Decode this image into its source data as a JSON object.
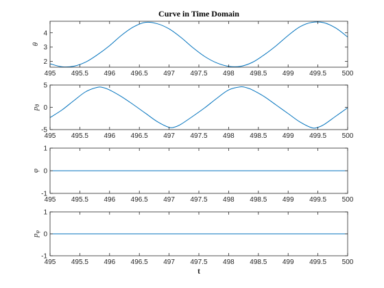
{
  "colors": {
    "series": "#0072bd",
    "axis": "#262626",
    "background": "#ffffff"
  },
  "chart_data": [
    {
      "type": "line",
      "title": "Curve in Time Domain",
      "ylabel": "θ",
      "xlabel": "",
      "xlim": [
        495,
        500
      ],
      "ylim": [
        1.6,
        4.8
      ],
      "xticks": [
        "495",
        "495.5",
        "496",
        "496.5",
        "497",
        "497.5",
        "498",
        "498.5",
        "499",
        "499.5",
        "500"
      ],
      "yticks": [
        2,
        3,
        4
      ],
      "ytick_labels": [
        "2",
        "3",
        "4"
      ],
      "grid": false,
      "series": [
        {
          "x": [
            495,
            495.2,
            495.4,
            495.6,
            495.8,
            496,
            496.2,
            496.4,
            496.6,
            496.8,
            497,
            497.2,
            497.4,
            497.6,
            497.8,
            498,
            498.2,
            498.4,
            498.6,
            498.8,
            499,
            499.2,
            499.4,
            499.6,
            499.8,
            500
          ],
          "values": [
            1.84,
            1.63,
            1.67,
            1.96,
            2.48,
            3.1,
            3.82,
            4.4,
            4.72,
            4.63,
            4.27,
            3.67,
            2.96,
            2.34,
            1.9,
            1.66,
            1.66,
            1.94,
            2.47,
            3.1,
            3.81,
            4.42,
            4.72,
            4.7,
            4.33,
            3.7
          ]
        }
      ]
    },
    {
      "type": "line",
      "title": "",
      "ylabel": "pθ",
      "xlabel": "",
      "xlim": [
        495,
        500
      ],
      "ylim": [
        -5,
        5
      ],
      "xticks": [
        "495",
        "495.5",
        "496",
        "496.5",
        "497",
        "497.5",
        "498",
        "498.5",
        "499",
        "499.5",
        "500"
      ],
      "yticks": [
        -5,
        0,
        5
      ],
      "ytick_labels": [
        "-5",
        "0",
        "5"
      ],
      "grid": false,
      "series": [
        {
          "x": [
            495,
            495.2,
            495.4,
            495.6,
            495.8,
            495.9,
            496,
            496.2,
            496.4,
            496.6,
            496.8,
            497,
            497.1,
            497.2,
            497.4,
            497.6,
            497.8,
            498,
            498.2,
            498.3,
            498.4,
            498.6,
            498.8,
            499,
            499.2,
            499.4,
            499.5,
            499.6,
            499.8,
            500
          ],
          "values": [
            -2.3,
            -0.6,
            1.5,
            3.5,
            4.5,
            4.4,
            3.9,
            2.4,
            0.6,
            -1.3,
            -3.2,
            -4.5,
            -4.4,
            -3.8,
            -2.0,
            -0.1,
            2.0,
            3.9,
            4.6,
            4.4,
            3.9,
            2.4,
            0.5,
            -1.4,
            -3.3,
            -4.6,
            -4.5,
            -3.9,
            -2.0,
            -0.1
          ]
        }
      ]
    },
    {
      "type": "line",
      "title": "",
      "ylabel": "φ",
      "xlabel": "",
      "xlim": [
        495,
        500
      ],
      "ylim": [
        -1,
        1
      ],
      "xticks": [
        "495",
        "495.5",
        "496",
        "496.5",
        "497",
        "497.5",
        "498",
        "498.5",
        "499",
        "499.5",
        "500"
      ],
      "yticks": [
        -1,
        0,
        1
      ],
      "ytick_labels": [
        "-1",
        "0",
        "1"
      ],
      "grid": false,
      "series": [
        {
          "x": [
            495,
            500
          ],
          "values": [
            0,
            0
          ]
        }
      ]
    },
    {
      "type": "line",
      "title": "",
      "ylabel": "pφ",
      "xlabel": "t",
      "xlim": [
        495,
        500
      ],
      "ylim": [
        -1,
        1
      ],
      "xticks": [
        "495",
        "495.5",
        "496",
        "496.5",
        "497",
        "497.5",
        "498",
        "498.5",
        "499",
        "499.5",
        "500"
      ],
      "yticks": [
        -1,
        0,
        1
      ],
      "ytick_labels": [
        "-1",
        "0",
        "1"
      ],
      "grid": false,
      "series": [
        {
          "x": [
            495,
            500
          ],
          "values": [
            0,
            0
          ]
        }
      ]
    }
  ]
}
